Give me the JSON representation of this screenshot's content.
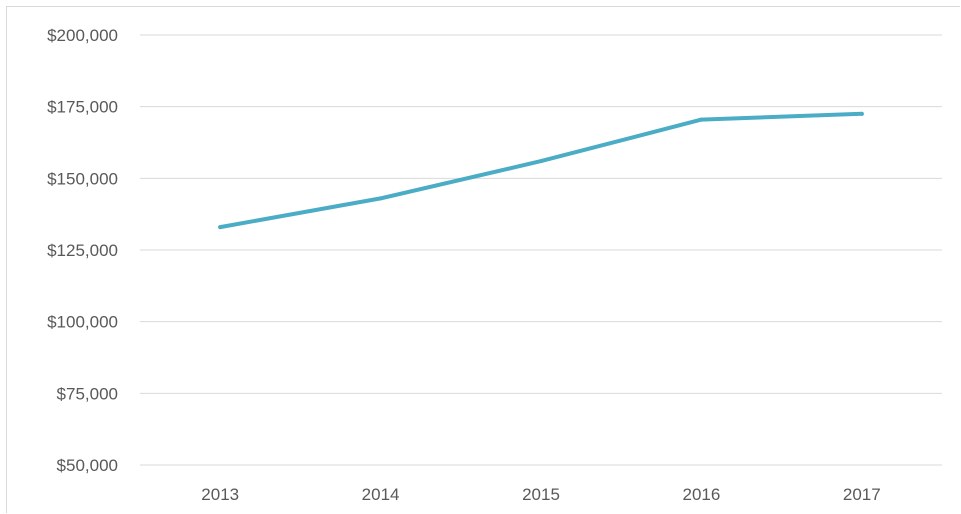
{
  "chart_data": {
    "type": "line",
    "title": "",
    "xlabel": "",
    "ylabel": "",
    "categories": [
      "2013",
      "2014",
      "2015",
      "2016",
      "2017"
    ],
    "series": [
      {
        "values": [
          133000,
          143000,
          156000,
          170500,
          172500
        ],
        "color": "#4bacc6"
      }
    ],
    "ylim": [
      50000,
      200000
    ],
    "y_ticks": [
      {
        "value": 50000,
        "label": "$50,000"
      },
      {
        "value": 75000,
        "label": "$75,000"
      },
      {
        "value": 100000,
        "label": "$100,000"
      },
      {
        "value": 125000,
        "label": "$125,000"
      },
      {
        "value": 150000,
        "label": "$150,000"
      },
      {
        "value": 175000,
        "label": "$175,000"
      },
      {
        "value": 200000,
        "label": "$200,000"
      }
    ],
    "grid": true,
    "legend": "none",
    "colors": {
      "gridline": "#d9d9d9",
      "tick_text": "#595959"
    }
  }
}
